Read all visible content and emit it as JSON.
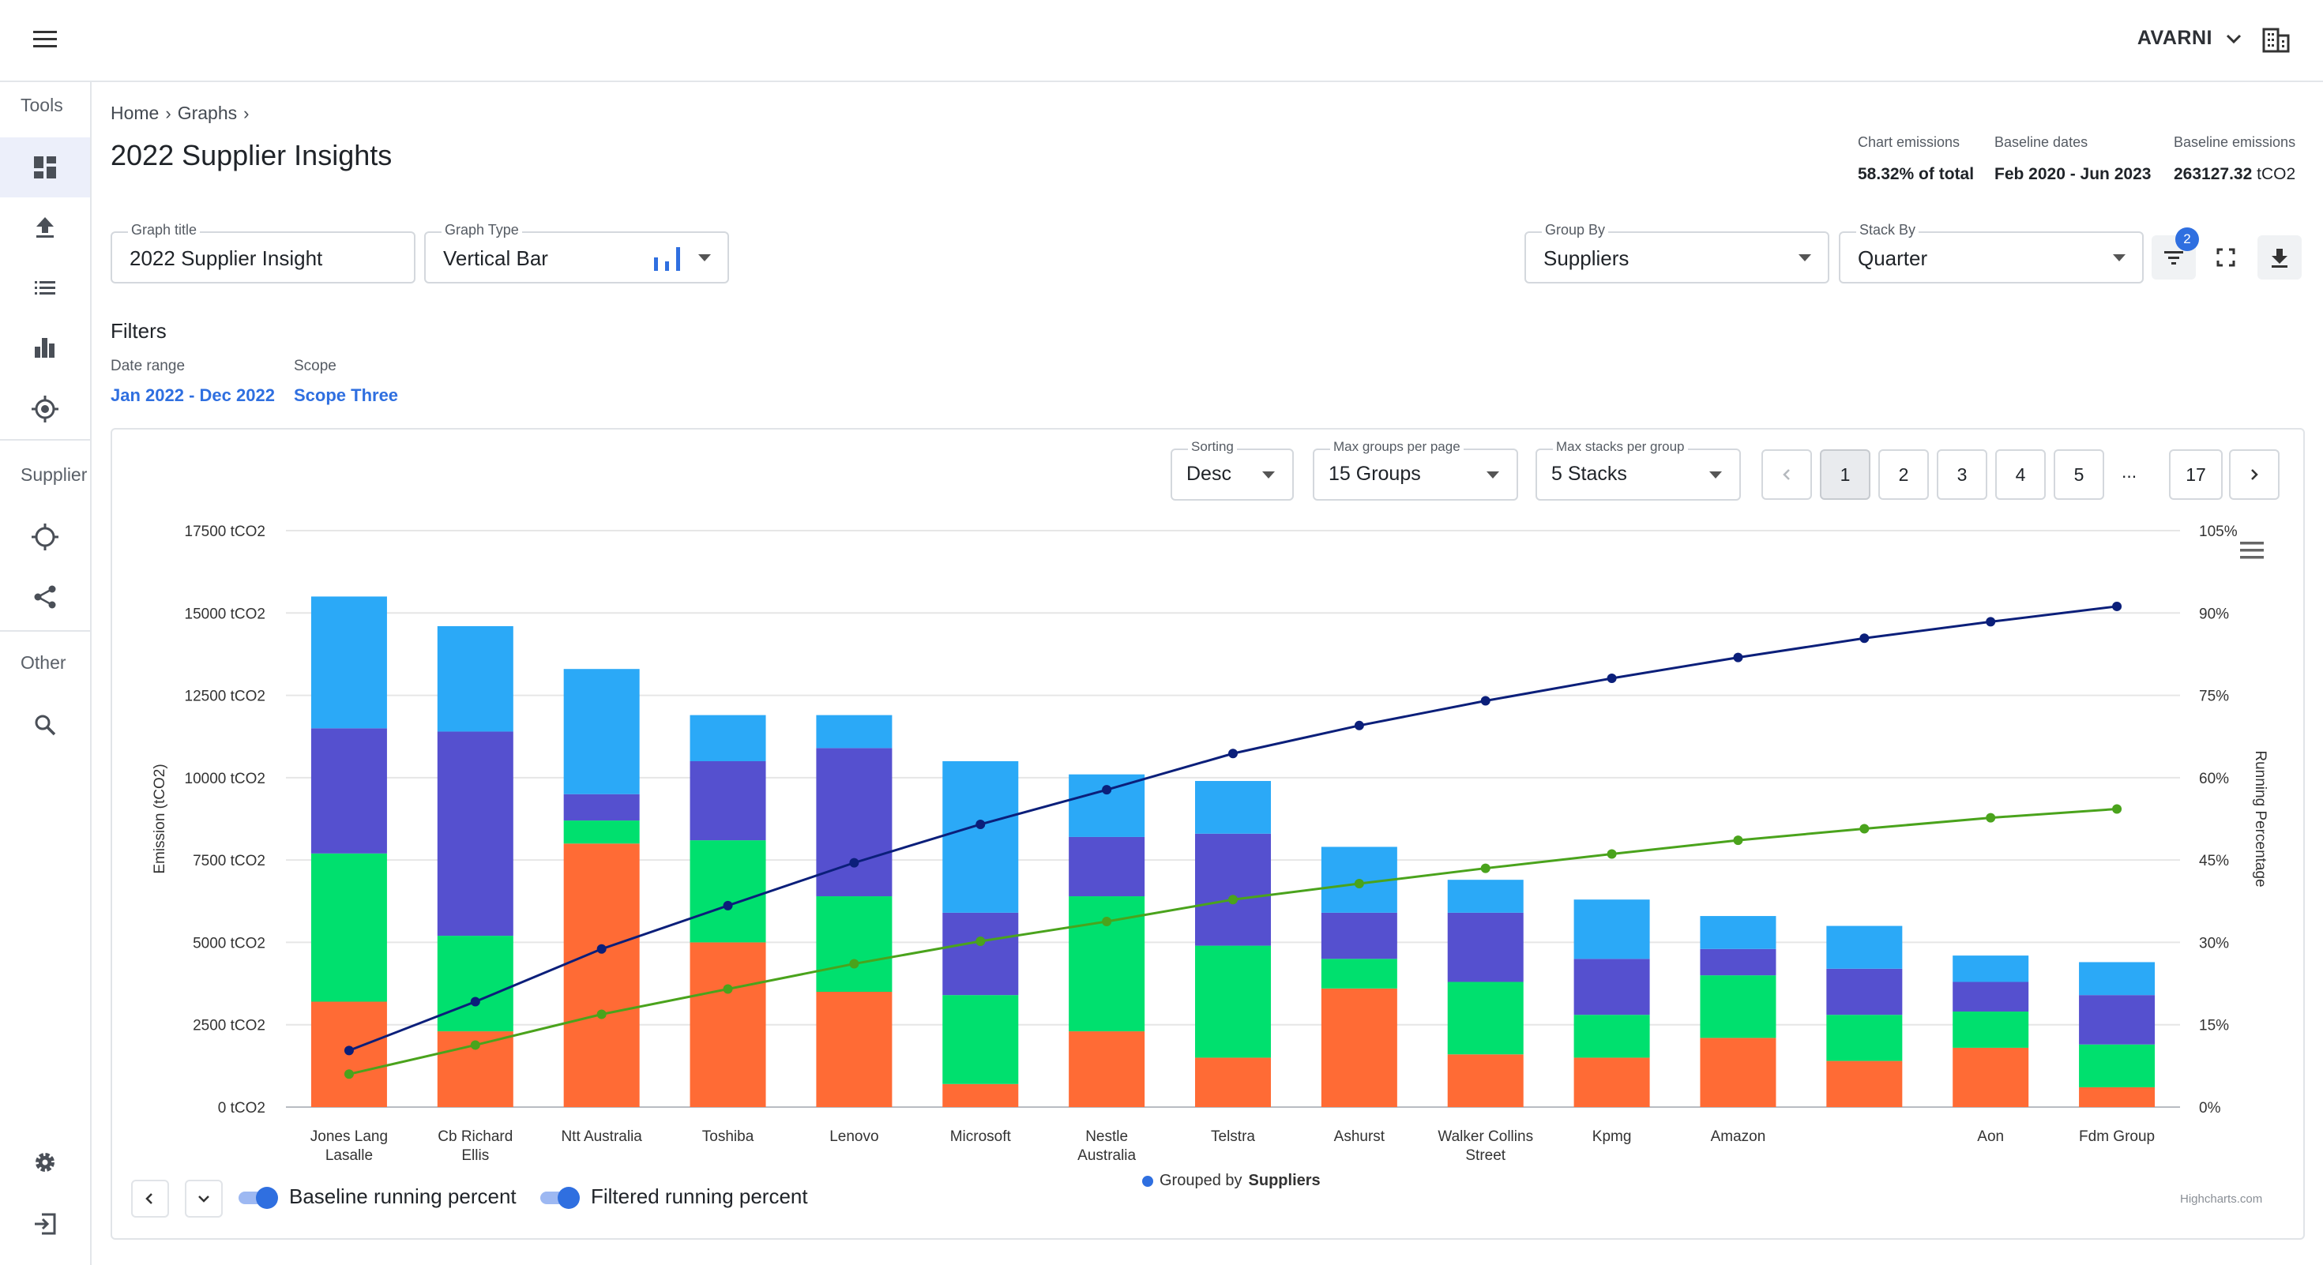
{
  "topbar": {
    "org_name": "AVARNI"
  },
  "sidebar": {
    "sections": {
      "tools": "Tools",
      "supplier": "Supplier",
      "other": "Other"
    }
  },
  "breadcrumb": {
    "home": "Home",
    "graphs": "Graphs"
  },
  "page": {
    "title": "2022 Supplier Insights"
  },
  "stats": {
    "chart_emissions_label": "Chart emissions",
    "chart_emissions_value": "58.32% of total",
    "baseline_dates_label": "Baseline dates",
    "baseline_dates_value": "Feb 2020 - Jun 2023",
    "baseline_emissions_label": "Baseline emissions",
    "baseline_emissions_value": "263127.32",
    "baseline_emissions_unit": "tCO2"
  },
  "controls": {
    "graph_title_label": "Graph title",
    "graph_title_value": "2022 Supplier Insight",
    "graph_type_label": "Graph Type",
    "graph_type_value": "Vertical Bar",
    "group_by_label": "Group By",
    "group_by_value": "Suppliers",
    "stack_by_label": "Stack By",
    "stack_by_value": "Quarter",
    "filter_badge_count": "2"
  },
  "filters": {
    "title": "Filters",
    "date_range_label": "Date range",
    "date_range_value": "Jan 2022 - Dec 2022",
    "scope_label": "Scope",
    "scope_value": "Scope Three"
  },
  "chart_controls": {
    "sorting_label": "Sorting",
    "sorting_value": "Desc",
    "max_groups_label": "Max groups per page",
    "max_groups_value": "15 Groups",
    "max_stacks_label": "Max stacks per group",
    "max_stacks_value": "5 Stacks",
    "pages": [
      "1",
      "2",
      "3",
      "4",
      "5"
    ],
    "ellipsis": "...",
    "last_page": "17",
    "active_page": "1"
  },
  "legend": {
    "baseline": "Baseline running percent",
    "filtered": "Filtered running percent",
    "grouped_by_prefix": "Grouped by",
    "grouped_by_value": "Suppliers",
    "credits": "Highcharts.com"
  },
  "colors": {
    "accent": "#2f6fe0",
    "q1": "#ff6b35",
    "q2": "#00e06e",
    "q3": "#5550cf",
    "q4": "#2ba9f7",
    "baseline_line": "#0b1f7a",
    "filtered_line": "#4aa31c"
  },
  "chart_data": {
    "type": "bar",
    "stacked": true,
    "categories": [
      "Jones Lang Lasalle",
      "Cb Richard Ellis",
      "Ntt Australia",
      "Toshiba",
      "Lenovo",
      "Microsoft",
      "Nestle Australia",
      "Telstra",
      "Ashurst",
      "Walker Collins Street",
      "Kpmg",
      "Amazon",
      "",
      "Aon",
      "Fdm Group"
    ],
    "category_lines": [
      [
        "Jones Lang",
        "Lasalle"
      ],
      [
        "Cb Richard",
        "Ellis"
      ],
      [
        "Ntt Australia"
      ],
      [
        "Toshiba"
      ],
      [
        "Lenovo"
      ],
      [
        "Microsoft"
      ],
      [
        "Nestle",
        "Australia"
      ],
      [
        "Telstra"
      ],
      [
        "Ashurst"
      ],
      [
        "Walker Collins",
        "Street"
      ],
      [
        "Kpmg"
      ],
      [
        "Amazon"
      ],
      [
        ""
      ],
      [
        "Aon"
      ],
      [
        "Fdm Group"
      ]
    ],
    "series": [
      {
        "values": [
          3200,
          2300,
          8000,
          5000,
          3500,
          700,
          2300,
          1500,
          3600,
          1600,
          1500,
          2100,
          1400,
          1800,
          600
        ]
      },
      {
        "values": [
          4500,
          2900,
          700,
          3100,
          2900,
          2700,
          4100,
          3400,
          900,
          2200,
          1300,
          1900,
          1400,
          1100,
          1300
        ]
      },
      {
        "values": [
          3800,
          6200,
          800,
          2400,
          4500,
          2500,
          1800,
          3400,
          1400,
          2100,
          1700,
          800,
          1400,
          900,
          1500
        ]
      },
      {
        "values": [
          4000,
          3200,
          3800,
          1400,
          1000,
          4600,
          1900,
          1600,
          2000,
          1000,
          1800,
          1000,
          1300,
          800,
          1000
        ]
      }
    ],
    "lines": [
      {
        "name": "Baseline running percent",
        "axis": "right",
        "values": [
          10.3,
          19.2,
          28.8,
          36.7,
          44.5,
          51.5,
          57.8,
          64.4,
          69.5,
          74.0,
          78.1,
          81.9,
          85.4,
          88.4,
          91.2
        ]
      },
      {
        "name": "Filtered running percent",
        "axis": "right",
        "values": [
          6.0,
          11.3,
          16.9,
          21.5,
          26.1,
          30.2,
          33.8,
          37.8,
          40.7,
          43.5,
          46.1,
          48.6,
          50.7,
          52.7,
          54.3
        ]
      }
    ],
    "y_left": {
      "label": "Emission (tCO2)",
      "min": 0,
      "max": 17500,
      "ticks": [
        "0 tCO2",
        "2500 tCO2",
        "5000 tCO2",
        "7500 tCO2",
        "10000 tCO2",
        "12500 tCO2",
        "15000 tCO2",
        "17500 tCO2"
      ]
    },
    "y_right": {
      "label": "Running Percentage",
      "min": 0,
      "max": 105,
      "ticks": [
        "0%",
        "15%",
        "30%",
        "45%",
        "60%",
        "75%",
        "90%",
        "105%"
      ]
    },
    "grid": true
  }
}
